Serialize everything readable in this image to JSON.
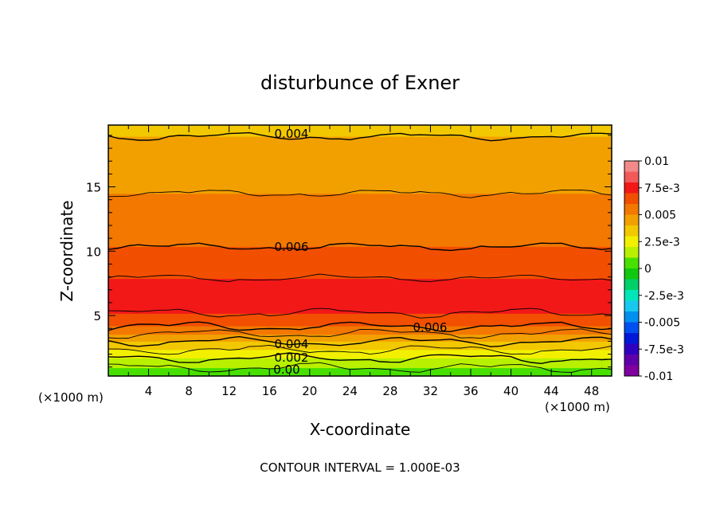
{
  "chart_data": {
    "type": "heatmap",
    "title": "disturbunce of Exner",
    "xlabel": "X-coordinate",
    "ylabel": "Z-coordinate",
    "x_unit": "(×1000 m)",
    "x_unit_right": "(×1000 m)",
    "xlim": [
      0,
      50
    ],
    "ylim": [
      0.3,
      19.8
    ],
    "x_ticks": [
      "4",
      "8",
      "12",
      "16",
      "20",
      "24",
      "28",
      "32",
      "36",
      "40",
      "44",
      "48"
    ],
    "y_ticks": [
      "5",
      "10",
      "15"
    ],
    "contour_interval_text": "CONTOUR INTERVAL = 1.000E-03",
    "contour_labels": [
      "0.004",
      "0.006",
      "0.006",
      "0.004",
      "0.002",
      "0.00"
    ],
    "colorbar": {
      "range": [
        -0.01,
        0.01
      ],
      "labels": [
        "0.01",
        "7.5e-3",
        "0.005",
        "2.5e-3",
        "0",
        "-2.5e-3",
        "-0.005",
        "-7.5e-3",
        "-0.01"
      ],
      "colors": [
        "#f28a8a",
        "#f25a5a",
        "#f21818",
        "#f24f00",
        "#f27800",
        "#f2a000",
        "#f2c800",
        "#f2f000",
        "#b8f000",
        "#48e000",
        "#10c810",
        "#00d068",
        "#00e6b8",
        "#18c8f0",
        "#0090f0",
        "#0050f0",
        "#0018d8",
        "#3000c0",
        "#6000a8",
        "#8000a0"
      ]
    },
    "profile": [
      {
        "z": 0.3,
        "value": 0.0002
      },
      {
        "z": 0.8,
        "value": 0.0008
      },
      {
        "z": 1.3,
        "value": 0.0015
      },
      {
        "z": 1.9,
        "value": 0.0023
      },
      {
        "z": 2.4,
        "value": 0.0031
      },
      {
        "z": 2.9,
        "value": 0.0039
      },
      {
        "z": 3.5,
        "value": 0.0048
      },
      {
        "z": 4.0,
        "value": 0.0058
      },
      {
        "z": 4.6,
        "value": 0.0066
      },
      {
        "z": 5.5,
        "value": 0.0072
      },
      {
        "z": 7.0,
        "value": 0.0073
      },
      {
        "z": 8.5,
        "value": 0.0068
      },
      {
        "z": 10.0,
        "value": 0.0061
      },
      {
        "z": 12.0,
        "value": 0.0055
      },
      {
        "z": 14.0,
        "value": 0.0051
      },
      {
        "z": 16.0,
        "value": 0.0047
      },
      {
        "z": 18.0,
        "value": 0.0042
      },
      {
        "z": 19.8,
        "value": 0.0038
      }
    ]
  }
}
